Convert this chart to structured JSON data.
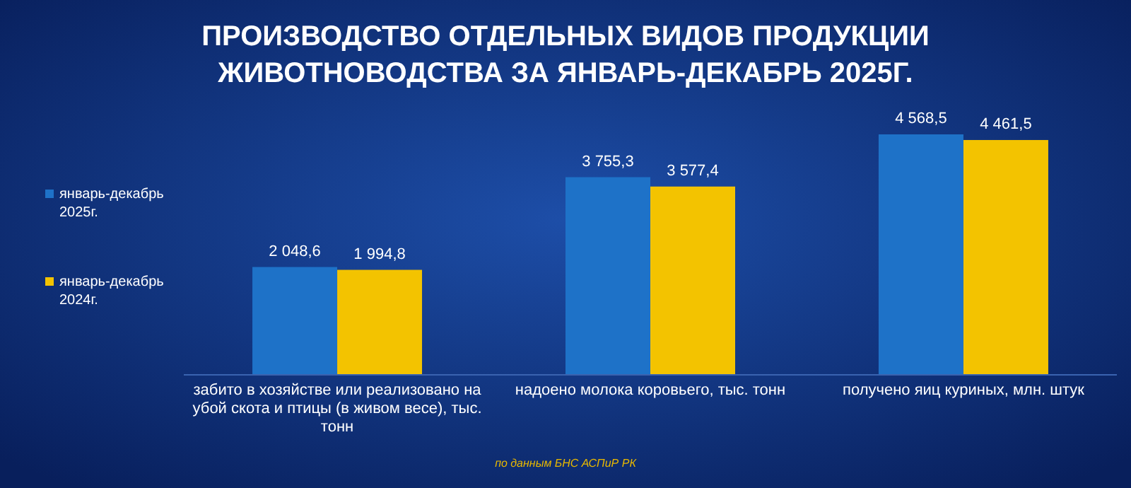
{
  "chart_data": {
    "type": "bar",
    "title": "ПРОИЗВОДСТВО ОТДЕЛЬНЫХ ВИДОВ ПРОДУКЦИИ ЖИВОТНОВОДСТВА ЗА ЯНВАРЬ-ДЕКАБРЬ 2025Г.",
    "categories": [
      "забито в хозяйстве или реализовано на убой скота и птицы (в живом весе), тыс. тонн",
      "надоено молока коровьего, тыс. тонн",
      "получено яиц куриных, млн. штук"
    ],
    "series": [
      {
        "name": "январь-декабрь 2025г.",
        "color": "#1e72c8",
        "values": [
          2048.6,
          3755.3,
          4568.5
        ],
        "value_labels": [
          "2 048,6",
          "3 755,3",
          "4 568,5"
        ]
      },
      {
        "name": "январь-декабрь 2024г.",
        "color": "#f3c300",
        "values": [
          1994.8,
          3577.4,
          4461.5
        ],
        "value_labels": [
          "1 994,8",
          "3 577,4",
          "4 461,5"
        ]
      }
    ],
    "legend": "left",
    "annotations": [
      "по данным БНС АСПиР РК"
    ]
  }
}
